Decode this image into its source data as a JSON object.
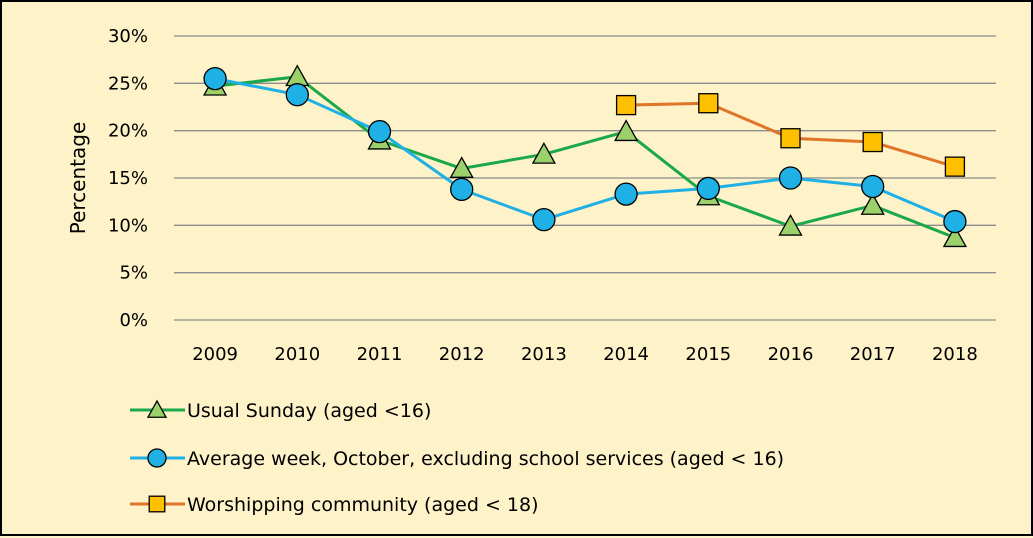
{
  "chart_data": {
    "type": "line",
    "categories": [
      "2009",
      "2010",
      "2011",
      "2012",
      "2013",
      "2014",
      "2015",
      "2016",
      "2017",
      "2018"
    ],
    "ylabel": "Percentage",
    "ylim": [
      0,
      30
    ],
    "yticks": [
      "0%",
      "5%",
      "10%",
      "15%",
      "20%",
      "25%",
      "30%"
    ],
    "grid": true,
    "legend_position": "bottom-left",
    "series": [
      {
        "name": "Usual Sunday (aged <16)",
        "color": "#1aa84a",
        "marker": "triangle",
        "marker_color": "#9bd06a",
        "values": [
          24.7,
          25.7,
          19.0,
          16.0,
          17.5,
          19.9,
          13.1,
          9.9,
          12.1,
          8.7
        ]
      },
      {
        "name": "Average week, October, excluding school services (aged < 16)",
        "color": "#1fb0e6",
        "marker": "circle",
        "marker_color": "#1fb0e6",
        "values": [
          25.5,
          23.8,
          19.9,
          13.8,
          10.6,
          13.3,
          13.9,
          15.0,
          14.1,
          10.4
        ]
      },
      {
        "name": "Worshipping community (aged < 18)",
        "color": "#e07428",
        "marker": "square",
        "marker_color": "#ffc000",
        "values": [
          null,
          null,
          null,
          null,
          null,
          22.7,
          22.9,
          19.2,
          18.8,
          16.2
        ]
      }
    ]
  }
}
